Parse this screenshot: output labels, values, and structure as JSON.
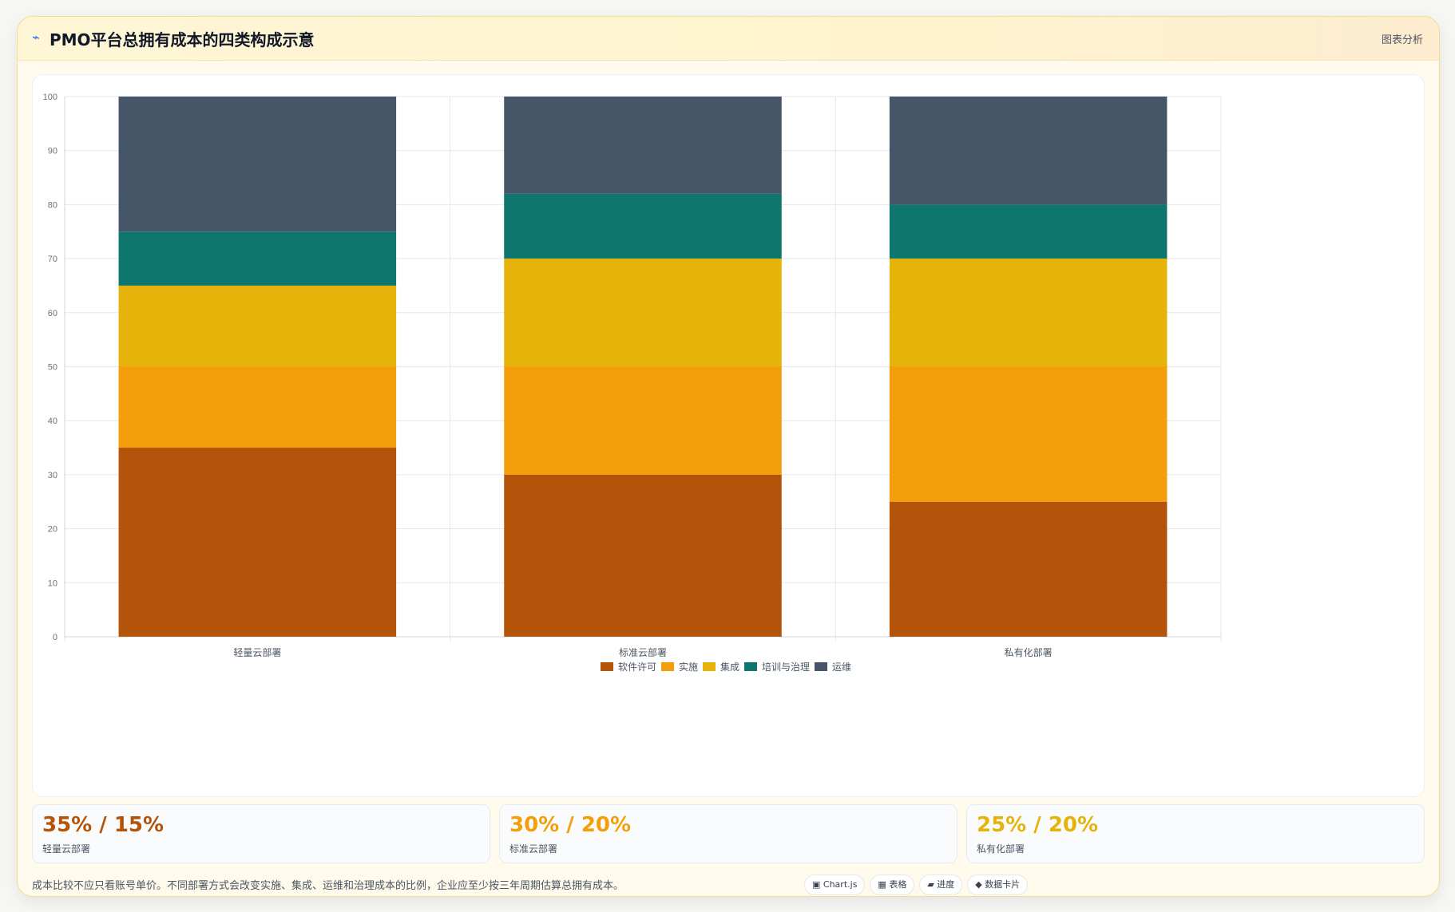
{
  "header": {
    "icon": "chart-lightning-icon",
    "title": "PMO平台总拥有成本的四类构成示意",
    "action_label": "图表分析"
  },
  "chart_data": {
    "type": "bar",
    "stacked": true,
    "categories": [
      "轻量云部署",
      "标准云部署",
      "私有化部署"
    ],
    "series": [
      {
        "name": "软件许可",
        "color": "#b4530a",
        "values": [
          35,
          30,
          25
        ]
      },
      {
        "name": "实施",
        "color": "#f49e0b",
        "values": [
          15,
          20,
          25
        ]
      },
      {
        "name": "集成",
        "color": "#e6b30b",
        "values": [
          15,
          20,
          20
        ]
      },
      {
        "name": "培训与治理",
        "color": "#0f766e",
        "values": [
          10,
          12,
          10
        ]
      },
      {
        "name": "运维",
        "color": "#475569",
        "values": [
          25,
          18,
          20
        ]
      }
    ],
    "ylim": [
      0,
      100
    ],
    "yticks": [
      0,
      10,
      20,
      30,
      40,
      50,
      60,
      70,
      80,
      90,
      100
    ],
    "grid": true,
    "legend": "bottom-center"
  },
  "stats": [
    {
      "value": "35% / 15%",
      "label": "轻量云部署",
      "color": "#b4530a"
    },
    {
      "value": "30% / 20%",
      "label": "标准云部署",
      "color": "#f49e0b"
    },
    {
      "value": "25% / 20%",
      "label": "私有化部署",
      "color": "#e6b30b"
    }
  ],
  "footnote": "成本比较不应只看账号单价。不同部署方式会改变实施、集成、运维和治理成本的比例，企业应至少按三年周期估算总拥有成本。",
  "pills": [
    {
      "icon": "chart-icon",
      "glyph": "▣",
      "label": "Chart.js"
    },
    {
      "icon": "table-icon",
      "glyph": "▦",
      "label": "表格"
    },
    {
      "icon": "progress-icon",
      "glyph": "▰",
      "label": "进度"
    },
    {
      "icon": "data-card-icon",
      "glyph": "◆",
      "label": "数据卡片"
    }
  ]
}
